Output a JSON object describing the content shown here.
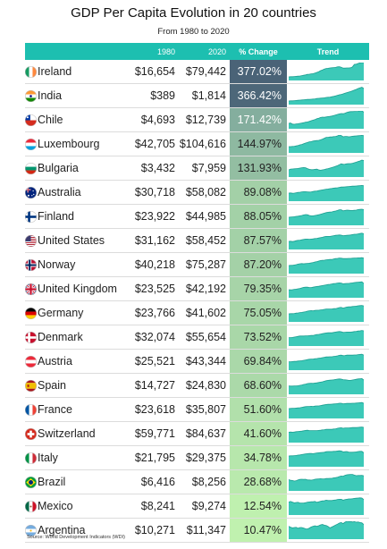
{
  "title": "GDP Per Capita Evolution in 20 countries",
  "subtitle": "From 1980 to 2020",
  "source": "Source: World Development Indicators (WDI)",
  "colors": {
    "header": "#1dbfb0",
    "sparkline": "#3cc9b8",
    "pct_max": "#4a6377",
    "pct_mid": "#7ea79c",
    "pct_min": "#c4f5b0"
  },
  "chart_data": {
    "type": "table",
    "columns": [
      "",
      "1980",
      "2020",
      "% Change",
      "Trend"
    ],
    "rows": [
      {
        "country": "Ireland",
        "flag": "flag-ireland",
        "y1980": "$16,654",
        "y2020": "$79,442",
        "change": "377.02%",
        "change_value": 377.02,
        "trend": [
          0.2,
          0.21,
          0.21,
          0.22,
          0.23,
          0.24,
          0.25,
          0.27,
          0.29,
          0.31,
          0.34,
          0.35,
          0.37,
          0.38,
          0.41,
          0.45,
          0.49,
          0.55,
          0.59,
          0.64,
          0.67,
          0.68,
          0.7,
          0.71,
          0.72,
          0.73,
          0.76,
          0.77,
          0.74,
          0.69,
          0.69,
          0.7,
          0.7,
          0.71,
          0.76,
          0.9,
          0.91,
          0.95,
          0.99,
          1.0,
          1.0
        ]
      },
      {
        "country": "India",
        "flag": "flag-india",
        "y1980": "$389",
        "y2020": "$1,814",
        "change": "366.42%",
        "change_value": 366.42,
        "trend": [
          0.2,
          0.21,
          0.21,
          0.22,
          0.23,
          0.24,
          0.25,
          0.26,
          0.27,
          0.28,
          0.29,
          0.29,
          0.3,
          0.31,
          0.32,
          0.34,
          0.35,
          0.36,
          0.37,
          0.38,
          0.4,
          0.41,
          0.42,
          0.44,
          0.46,
          0.49,
          0.52,
          0.55,
          0.57,
          0.6,
          0.64,
          0.67,
          0.7,
          0.73,
          0.77,
          0.81,
          0.85,
          0.9,
          0.94,
          0.97,
          0.9
        ]
      },
      {
        "country": "Chile",
        "flag": "flag-chile",
        "y1980": "$4,693",
        "y2020": "$12,739",
        "change": "171.42%",
        "change_value": 171.42,
        "trend": [
          0.3,
          0.32,
          0.26,
          0.25,
          0.27,
          0.28,
          0.3,
          0.32,
          0.34,
          0.37,
          0.38,
          0.41,
          0.45,
          0.48,
          0.51,
          0.56,
          0.59,
          0.63,
          0.65,
          0.64,
          0.66,
          0.68,
          0.69,
          0.71,
          0.74,
          0.77,
          0.8,
          0.83,
          0.85,
          0.84,
          0.87,
          0.91,
          0.94,
          0.96,
          0.96,
          0.97,
          0.97,
          0.98,
          1.0,
          1.0,
          0.93
        ]
      },
      {
        "country": "Luxembourg",
        "flag": "flag-luxembourg",
        "y1980": "$42,705",
        "y2020": "$104,616",
        "change": "144.97%",
        "change_value": 144.97,
        "trend": [
          0.35,
          0.35,
          0.36,
          0.37,
          0.39,
          0.41,
          0.45,
          0.47,
          0.51,
          0.55,
          0.58,
          0.62,
          0.63,
          0.66,
          0.68,
          0.69,
          0.7,
          0.73,
          0.77,
          0.82,
          0.87,
          0.87,
          0.89,
          0.89,
          0.91,
          0.92,
          0.95,
          1.0,
          0.97,
          0.9,
          0.92,
          0.92,
          0.9,
          0.91,
          0.93,
          0.94,
          0.95,
          0.96,
          0.97,
          0.98,
          0.96
        ]
      },
      {
        "country": "Bulgaria",
        "flag": "flag-bulgaria",
        "y1980": "$3,432",
        "y2020": "$7,959",
        "change": "131.93%",
        "change_value": 131.93,
        "trend": [
          0.4,
          0.44,
          0.45,
          0.46,
          0.47,
          0.48,
          0.5,
          0.52,
          0.53,
          0.52,
          0.47,
          0.43,
          0.41,
          0.41,
          0.43,
          0.44,
          0.4,
          0.38,
          0.4,
          0.42,
          0.45,
          0.47,
          0.5,
          0.53,
          0.56,
          0.6,
          0.64,
          0.69,
          0.74,
          0.71,
          0.72,
          0.74,
          0.75,
          0.75,
          0.77,
          0.8,
          0.83,
          0.87,
          0.9,
          0.95,
          0.92
        ]
      },
      {
        "country": "Australia",
        "flag": "flag-australia",
        "y1980": "$30,718",
        "y2020": "$58,082",
        "change": "89.08%",
        "change_value": 89.08,
        "trend": [
          0.45,
          0.46,
          0.44,
          0.45,
          0.47,
          0.49,
          0.5,
          0.52,
          0.53,
          0.53,
          0.52,
          0.51,
          0.52,
          0.54,
          0.56,
          0.57,
          0.59,
          0.61,
          0.63,
          0.65,
          0.67,
          0.68,
          0.7,
          0.71,
          0.73,
          0.74,
          0.75,
          0.77,
          0.79,
          0.79,
          0.8,
          0.81,
          0.82,
          0.83,
          0.84,
          0.84,
          0.85,
          0.86,
          0.87,
          0.88,
          0.86
        ]
      },
      {
        "country": "Finland",
        "flag": "flag-finland",
        "y1980": "$23,922",
        "y2020": "$44,985",
        "change": "88.05%",
        "change_value": 88.05,
        "trend": [
          0.45,
          0.46,
          0.47,
          0.48,
          0.5,
          0.51,
          0.53,
          0.55,
          0.58,
          0.6,
          0.59,
          0.55,
          0.53,
          0.53,
          0.55,
          0.57,
          0.59,
          0.62,
          0.65,
          0.68,
          0.71,
          0.73,
          0.74,
          0.75,
          0.78,
          0.8,
          0.83,
          0.87,
          0.87,
          0.81,
          0.83,
          0.85,
          0.84,
          0.83,
          0.83,
          0.84,
          0.85,
          0.88,
          0.89,
          0.9,
          0.88
        ]
      },
      {
        "country": "United States",
        "flag": "flag-united-states",
        "y1980": "$31,162",
        "y2020": "$58,452",
        "change": "87.57%",
        "change_value": 87.57,
        "trend": [
          0.45,
          0.46,
          0.44,
          0.46,
          0.49,
          0.51,
          0.52,
          0.54,
          0.56,
          0.58,
          0.58,
          0.57,
          0.58,
          0.59,
          0.61,
          0.62,
          0.64,
          0.66,
          0.68,
          0.71,
          0.73,
          0.73,
          0.73,
          0.75,
          0.77,
          0.79,
          0.8,
          0.81,
          0.8,
          0.77,
          0.78,
          0.79,
          0.8,
          0.81,
          0.83,
          0.85,
          0.85,
          0.87,
          0.89,
          0.91,
          0.88
        ]
      },
      {
        "country": "Norway",
        "flag": "flag-norway",
        "y1980": "$40,218",
        "y2020": "$75,287",
        "change": "87.20%",
        "change_value": 87.2,
        "trend": [
          0.45,
          0.46,
          0.46,
          0.48,
          0.5,
          0.53,
          0.55,
          0.56,
          0.55,
          0.56,
          0.57,
          0.58,
          0.6,
          0.62,
          0.65,
          0.67,
          0.7,
          0.73,
          0.74,
          0.75,
          0.77,
          0.78,
          0.79,
          0.79,
          0.82,
          0.84,
          0.85,
          0.87,
          0.86,
          0.84,
          0.84,
          0.84,
          0.85,
          0.85,
          0.86,
          0.87,
          0.87,
          0.88,
          0.88,
          0.89,
          0.87
        ]
      },
      {
        "country": "United Kingdom",
        "flag": "flag-united-kingdom",
        "y1980": "$23,525",
        "y2020": "$42,192",
        "change": "79.35%",
        "change_value": 79.35,
        "trend": [
          0.45,
          0.44,
          0.45,
          0.47,
          0.48,
          0.5,
          0.52,
          0.55,
          0.58,
          0.59,
          0.59,
          0.57,
          0.57,
          0.59,
          0.61,
          0.63,
          0.64,
          0.66,
          0.68,
          0.7,
          0.72,
          0.74,
          0.75,
          0.77,
          0.79,
          0.8,
          0.82,
          0.83,
          0.82,
          0.78,
          0.79,
          0.8,
          0.8,
          0.82,
          0.83,
          0.85,
          0.86,
          0.87,
          0.88,
          0.89,
          0.8
        ]
      },
      {
        "country": "Germany",
        "flag": "flag-germany",
        "y1980": "$23,766",
        "y2020": "$41,602",
        "change": "75.05%",
        "change_value": 75.05,
        "trend": [
          0.45,
          0.46,
          0.46,
          0.47,
          0.49,
          0.5,
          0.52,
          0.53,
          0.55,
          0.57,
          0.6,
          0.62,
          0.63,
          0.62,
          0.64,
          0.65,
          0.65,
          0.67,
          0.68,
          0.7,
          0.72,
          0.72,
          0.72,
          0.72,
          0.74,
          0.74,
          0.77,
          0.8,
          0.81,
          0.77,
          0.8,
          0.83,
          0.84,
          0.84,
          0.86,
          0.87,
          0.88,
          0.9,
          0.91,
          0.92,
          0.89
        ]
      },
      {
        "country": "Denmark",
        "flag": "flag-denmark",
        "y1980": "$32,074",
        "y2020": "$55,654",
        "change": "73.52%",
        "change_value": 73.52,
        "trend": [
          0.47,
          0.47,
          0.48,
          0.5,
          0.52,
          0.54,
          0.56,
          0.56,
          0.56,
          0.57,
          0.57,
          0.58,
          0.59,
          0.59,
          0.62,
          0.64,
          0.65,
          0.67,
          0.69,
          0.71,
          0.73,
          0.74,
          0.74,
          0.74,
          0.76,
          0.78,
          0.8,
          0.81,
          0.8,
          0.76,
          0.77,
          0.78,
          0.78,
          0.78,
          0.79,
          0.81,
          0.82,
          0.84,
          0.85,
          0.87,
          0.85
        ]
      },
      {
        "country": "Austria",
        "flag": "flag-austria",
        "y1980": "$25,521",
        "y2020": "$43,344",
        "change": "69.84%",
        "change_value": 69.84,
        "trend": [
          0.47,
          0.47,
          0.48,
          0.49,
          0.49,
          0.51,
          0.52,
          0.53,
          0.55,
          0.57,
          0.59,
          0.61,
          0.62,
          0.62,
          0.64,
          0.65,
          0.67,
          0.68,
          0.7,
          0.72,
          0.74,
          0.74,
          0.75,
          0.75,
          0.77,
          0.78,
          0.8,
          0.83,
          0.84,
          0.81,
          0.82,
          0.84,
          0.84,
          0.84,
          0.84,
          0.85,
          0.85,
          0.87,
          0.88,
          0.89,
          0.84
        ]
      },
      {
        "country": "Spain",
        "flag": "flag-spain",
        "y1980": "$14,727",
        "y2020": "$24,830",
        "change": "68.60%",
        "change_value": 68.6,
        "trend": [
          0.47,
          0.46,
          0.46,
          0.47,
          0.47,
          0.48,
          0.5,
          0.52,
          0.55,
          0.57,
          0.6,
          0.61,
          0.62,
          0.61,
          0.63,
          0.64,
          0.66,
          0.68,
          0.7,
          0.73,
          0.76,
          0.78,
          0.79,
          0.8,
          0.81,
          0.83,
          0.85,
          0.86,
          0.85,
          0.82,
          0.81,
          0.8,
          0.78,
          0.78,
          0.8,
          0.82,
          0.84,
          0.86,
          0.87,
          0.88,
          0.8
        ]
      },
      {
        "country": "France",
        "flag": "flag-france",
        "y1980": "$23,618",
        "y2020": "$35,807",
        "change": "51.60%",
        "change_value": 51.6,
        "trend": [
          0.55,
          0.56,
          0.57,
          0.57,
          0.58,
          0.59,
          0.6,
          0.62,
          0.64,
          0.66,
          0.67,
          0.67,
          0.68,
          0.67,
          0.69,
          0.7,
          0.7,
          0.72,
          0.74,
          0.76,
          0.78,
          0.79,
          0.79,
          0.8,
          0.81,
          0.82,
          0.83,
          0.85,
          0.85,
          0.82,
          0.83,
          0.84,
          0.84,
          0.84,
          0.85,
          0.85,
          0.86,
          0.87,
          0.88,
          0.89,
          0.85
        ]
      },
      {
        "country": "Switzerland",
        "flag": "flag-switzerland",
        "y1980": "$59,771",
        "y2020": "$84,637",
        "change": "41.60%",
        "change_value": 41.6,
        "trend": [
          0.58,
          0.59,
          0.58,
          0.59,
          0.61,
          0.62,
          0.63,
          0.64,
          0.66,
          0.68,
          0.69,
          0.67,
          0.67,
          0.67,
          0.67,
          0.67,
          0.68,
          0.69,
          0.71,
          0.72,
          0.74,
          0.74,
          0.74,
          0.74,
          0.76,
          0.77,
          0.8,
          0.82,
          0.83,
          0.8,
          0.82,
          0.82,
          0.82,
          0.83,
          0.84,
          0.84,
          0.84,
          0.85,
          0.86,
          0.87,
          0.85
        ]
      },
      {
        "country": "Italy",
        "flag": "flag-italy",
        "y1980": "$21,795",
        "y2020": "$29,375",
        "change": "34.78%",
        "change_value": 34.78,
        "trend": [
          0.6,
          0.61,
          0.61,
          0.62,
          0.63,
          0.65,
          0.66,
          0.68,
          0.7,
          0.72,
          0.73,
          0.74,
          0.74,
          0.73,
          0.75,
          0.77,
          0.78,
          0.79,
          0.8,
          0.81,
          0.84,
          0.85,
          0.85,
          0.85,
          0.86,
          0.86,
          0.88,
          0.89,
          0.88,
          0.83,
          0.84,
          0.85,
          0.82,
          0.81,
          0.81,
          0.82,
          0.83,
          0.85,
          0.86,
          0.86,
          0.78
        ]
      },
      {
        "country": "Brazil",
        "flag": "flag-brazil",
        "y1980": "$6,416",
        "y2020": "$8,256",
        "change": "28.68%",
        "change_value": 28.68,
        "trend": [
          0.63,
          0.59,
          0.58,
          0.55,
          0.57,
          0.61,
          0.64,
          0.65,
          0.64,
          0.65,
          0.61,
          0.61,
          0.6,
          0.62,
          0.65,
          0.66,
          0.67,
          0.68,
          0.67,
          0.67,
          0.69,
          0.69,
          0.7,
          0.7,
          0.73,
          0.74,
          0.76,
          0.8,
          0.83,
          0.82,
          0.87,
          0.9,
          0.91,
          0.92,
          0.92,
          0.88,
          0.85,
          0.86,
          0.86,
          0.87,
          0.84
        ]
      },
      {
        "country": "Mexico",
        "flag": "flag-mexico",
        "y1980": "$8,241",
        "y2020": "$9,274",
        "change": "12.54%",
        "change_value": 12.54,
        "trend": [
          0.72,
          0.76,
          0.72,
          0.68,
          0.7,
          0.71,
          0.67,
          0.67,
          0.67,
          0.69,
          0.72,
          0.73,
          0.74,
          0.74,
          0.76,
          0.71,
          0.74,
          0.77,
          0.79,
          0.8,
          0.83,
          0.81,
          0.81,
          0.81,
          0.83,
          0.84,
          0.87,
          0.88,
          0.88,
          0.83,
          0.86,
          0.88,
          0.9,
          0.9,
          0.91,
          0.93,
          0.94,
          0.95,
          0.96,
          0.95,
          0.86
        ]
      },
      {
        "country": "Argentina",
        "flag": "flag-argentina",
        "y1980": "$10,271",
        "y2020": "$11,347",
        "change": "10.47%",
        "change_value": 10.47,
        "trend": [
          0.72,
          0.67,
          0.63,
          0.65,
          0.66,
          0.61,
          0.65,
          0.65,
          0.62,
          0.58,
          0.57,
          0.62,
          0.68,
          0.72,
          0.75,
          0.72,
          0.75,
          0.8,
          0.82,
          0.78,
          0.76,
          0.71,
          0.63,
          0.68,
          0.73,
          0.79,
          0.84,
          0.9,
          0.93,
          0.87,
          0.95,
          1.0,
          0.98,
          0.99,
          0.96,
          0.98,
          0.95,
          0.96,
          0.93,
          0.91,
          0.82
        ]
      }
    ]
  }
}
